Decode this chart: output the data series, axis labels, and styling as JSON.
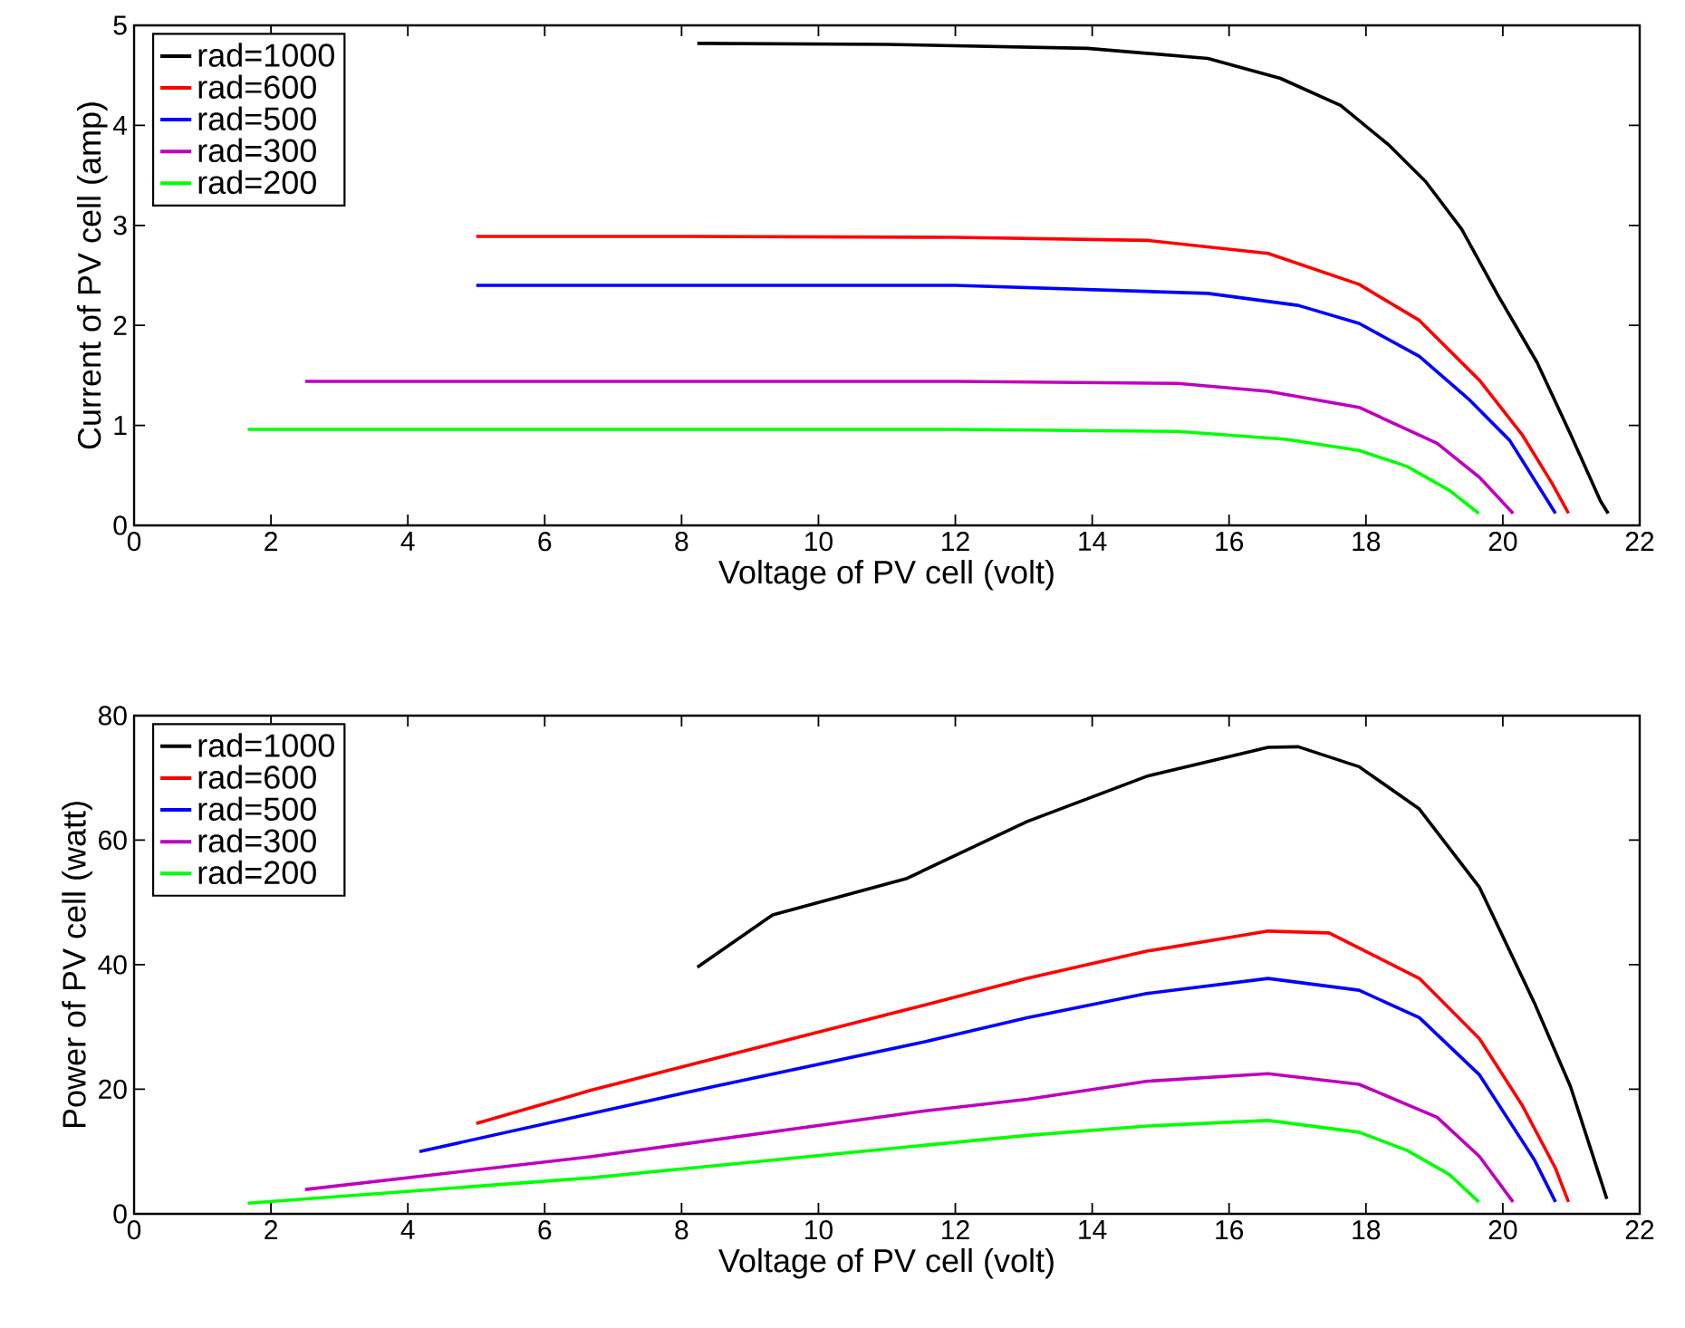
{
  "chart_data": [
    {
      "type": "line",
      "xlabel": "Voltage of PV cell (volt)",
      "ylabel": "Current of PV cell (amp)",
      "xlim": [
        0,
        22
      ],
      "ylim": [
        0,
        5
      ],
      "xticks": [
        0,
        2,
        4,
        6,
        8,
        10,
        12,
        14,
        16,
        18,
        20,
        22
      ],
      "yticks": [
        0,
        1,
        2,
        3,
        4,
        5
      ],
      "legend": "top left",
      "series": [
        {
          "name": "rad=1000",
          "color": "#000000",
          "x": [
            8.23,
            11,
            13.93,
            15.69,
            16.75,
            17.63,
            18.34,
            18.87,
            19.4,
            19.93,
            20.5,
            20.99,
            21.43,
            21.54
          ],
          "values": [
            4.82,
            4.81,
            4.77,
            4.67,
            4.47,
            4.2,
            3.8,
            3.44,
            2.96,
            2.3,
            1.63,
            0.91,
            0.24,
            0.12
          ]
        },
        {
          "name": "rad=600",
          "color": "#ff0000",
          "x": [
            5.0,
            8,
            12,
            14.81,
            16.57,
            17.9,
            18.78,
            19.66,
            20.28,
            20.72,
            20.96
          ],
          "values": [
            2.89,
            2.89,
            2.88,
            2.85,
            2.72,
            2.41,
            2.05,
            1.45,
            0.91,
            0.42,
            0.12
          ]
        },
        {
          "name": "rad=500",
          "color": "#0000ff",
          "x": [
            5.0,
            8,
            12,
            15.69,
            17.01,
            17.9,
            18.78,
            19.49,
            20.1,
            20.55,
            20.77
          ],
          "values": [
            2.4,
            2.4,
            2.4,
            2.32,
            2.2,
            2.02,
            1.69,
            1.27,
            0.85,
            0.36,
            0.12
          ]
        },
        {
          "name": "rad=300",
          "color": "#bf00bf",
          "x": [
            2.5,
            8,
            12,
            15.25,
            16.57,
            17.9,
            19.04,
            19.66,
            20.15
          ],
          "values": [
            1.44,
            1.44,
            1.44,
            1.42,
            1.34,
            1.18,
            0.82,
            0.48,
            0.12
          ]
        },
        {
          "name": "rad=200",
          "color": "#00ff00",
          "x": [
            1.66,
            8,
            12,
            15.25,
            16.84,
            17.9,
            18.6,
            19.22,
            19.65
          ],
          "values": [
            0.96,
            0.96,
            0.96,
            0.94,
            0.86,
            0.75,
            0.59,
            0.35,
            0.12
          ]
        }
      ]
    },
    {
      "type": "line",
      "xlabel": "Voltage of PV cell (volt)",
      "ylabel": "Power of PV cell (watt)",
      "xlim": [
        0,
        22
      ],
      "ylim": [
        0,
        80
      ],
      "xticks": [
        0,
        2,
        4,
        6,
        8,
        10,
        12,
        14,
        16,
        18,
        20,
        22
      ],
      "yticks": [
        0,
        20,
        40,
        60,
        80
      ],
      "legend": "top left",
      "series": [
        {
          "name": "rad=1000",
          "color": "#000000",
          "x": [
            8.23,
            9.33,
            11.28,
            13.05,
            14.81,
            16.57,
            17.01,
            17.9,
            18.78,
            19.66,
            20.46,
            20.99,
            21.52
          ],
          "values": [
            39.6,
            48.0,
            53.8,
            63.0,
            70.3,
            74.9,
            75.0,
            71.8,
            65.0,
            52.4,
            33.9,
            20.4,
            2.4
          ]
        },
        {
          "name": "rad=600",
          "color": "#ff0000",
          "x": [
            5.0,
            6.69,
            11.54,
            13.05,
            14.81,
            16.57,
            17.46,
            18.78,
            19.66,
            20.28,
            20.77,
            20.96
          ],
          "values": [
            14.5,
            19.9,
            33.5,
            37.8,
            42.2,
            45.4,
            45.1,
            37.8,
            28.1,
            17.5,
            7.3,
            1.9
          ]
        },
        {
          "name": "rad=500",
          "color": "#0000ff",
          "x": [
            4.17,
            8.45,
            11.54,
            13.05,
            14.81,
            16.57,
            17.9,
            18.78,
            19.66,
            20.46,
            20.77
          ],
          "values": [
            10.0,
            20.4,
            27.6,
            31.5,
            35.4,
            37.8,
            35.9,
            31.5,
            22.3,
            8.7,
            1.9
          ]
        },
        {
          "name": "rad=300",
          "color": "#bf00bf",
          "x": [
            2.5,
            6.69,
            11.54,
            13.05,
            14.81,
            16.57,
            17.9,
            19.04,
            19.66,
            20.15
          ],
          "values": [
            3.9,
            9.2,
            16.5,
            18.4,
            21.3,
            22.5,
            20.8,
            15.5,
            9.2,
            1.9
          ]
        },
        {
          "name": "rad=200",
          "color": "#00ff00",
          "x": [
            1.66,
            6.69,
            11.54,
            13.05,
            14.81,
            16.57,
            17.9,
            18.6,
            19.22,
            19.65
          ],
          "values": [
            1.7,
            5.8,
            11.0,
            12.6,
            14.1,
            15.0,
            13.1,
            10.2,
            6.3,
            1.9
          ]
        }
      ]
    }
  ]
}
